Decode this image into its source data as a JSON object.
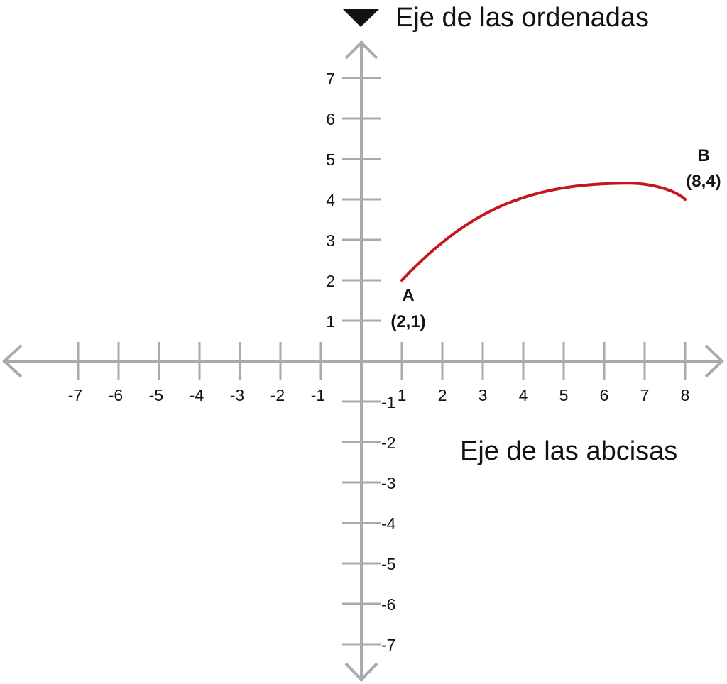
{
  "axes": {
    "y_title": "Eje de las ordenadas",
    "x_title": "Eje de las abcisas",
    "x_ticks": [
      -7,
      -6,
      -5,
      -4,
      -3,
      -2,
      -1,
      1,
      2,
      3,
      4,
      5,
      6,
      7,
      8
    ],
    "y_ticks": [
      -7,
      -6,
      -5,
      -4,
      -3,
      -2,
      -1,
      1,
      2,
      3,
      4,
      5,
      6,
      7
    ],
    "xlim": [
      -9,
      9
    ],
    "ylim": [
      -8,
      8
    ],
    "axis_color": "#aaaaaa"
  },
  "points": [
    {
      "name": "A",
      "coords": "(2,1)"
    },
    {
      "name": "B",
      "coords": "(8,4)"
    }
  ],
  "curve": {
    "color": "#c4161c",
    "from": [
      1,
      2
    ],
    "to": [
      8,
      4
    ],
    "peak": [
      6.6,
      4.4
    ]
  }
}
